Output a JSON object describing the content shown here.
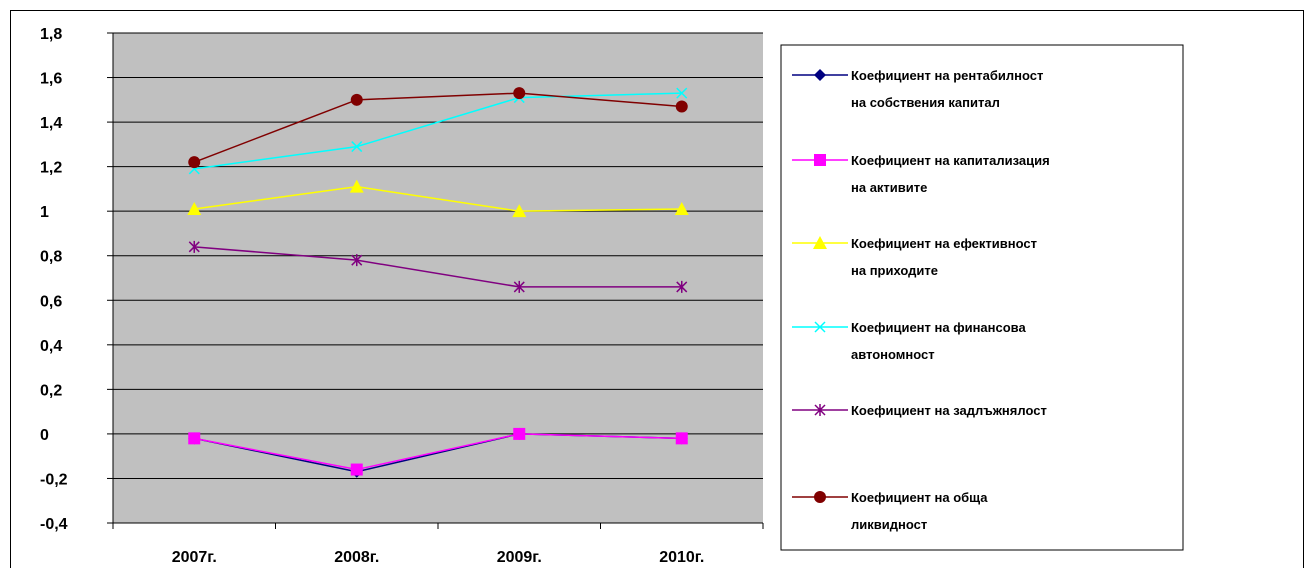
{
  "chart_data": {
    "type": "line",
    "title": "",
    "xlabel": "",
    "ylabel": "",
    "categories": [
      "2007г.",
      "2008г.",
      "2009г.",
      "2010г."
    ],
    "ylim": [
      -0.4,
      1.8
    ],
    "yticks": [
      "1,8",
      "1,6",
      "1,4",
      "1,2",
      "1",
      "0,8",
      "0,6",
      "0,4",
      "0,2",
      "0",
      "-0,2",
      "-0,4"
    ],
    "ytick_values": [
      1.8,
      1.6,
      1.4,
      1.2,
      1.0,
      0.8,
      0.6,
      0.4,
      0.2,
      0,
      -0.2,
      -0.4
    ],
    "grid": true,
    "plot_background": "#c0c0c0",
    "legend_position": "right",
    "series": [
      {
        "name": "Коефициент на рентабилност на собствения капитал",
        "legend_lines": [
          "Коефициент на рентабилност",
          "на собствения капитал"
        ],
        "color": "#000080",
        "marker": "diamond",
        "values": [
          -0.02,
          -0.17,
          0.0,
          -0.02
        ]
      },
      {
        "name": "Коефициент на капитализация на активите",
        "legend_lines": [
          "Коефициент на капитализация",
          "на активите"
        ],
        "color": "#ff00ff",
        "marker": "square",
        "values": [
          -0.02,
          -0.16,
          0.0,
          -0.02
        ]
      },
      {
        "name": "Коефициент на ефективност на приходите",
        "legend_lines": [
          "Коефициент на ефективност",
          "на приходите"
        ],
        "color": "#ffff00",
        "marker": "triangle",
        "values": [
          1.01,
          1.11,
          1.0,
          1.01
        ]
      },
      {
        "name": "Коефициент на финансова автономност",
        "legend_lines": [
          "Коефициент на финансова",
          "автономност"
        ],
        "color": "#00ffff",
        "marker": "x",
        "values": [
          1.19,
          1.29,
          1.51,
          1.53
        ]
      },
      {
        "name": "Коефициент на задлъжнялост",
        "legend_lines": [
          "Коефициент на задлъжнялост"
        ],
        "color": "#800080",
        "marker": "star",
        "values": [
          0.84,
          0.78,
          0.66,
          0.66
        ]
      },
      {
        "name": "Коефициент на обща ликвидност",
        "legend_lines": [
          "Коефициент на обща",
          "ликвидност"
        ],
        "color": "#800000",
        "marker": "circle",
        "values": [
          1.22,
          1.5,
          1.53,
          1.47
        ]
      }
    ]
  }
}
